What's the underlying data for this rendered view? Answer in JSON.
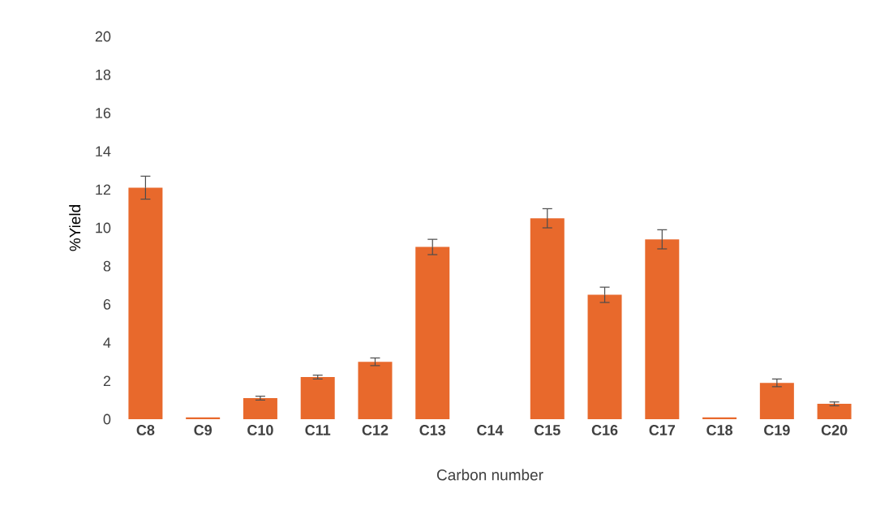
{
  "chart_data": {
    "type": "bar",
    "xlabel": "Carbon number",
    "ylabel": "%Yield",
    "categories": [
      "C8",
      "C9",
      "C10",
      "C11",
      "C12",
      "C13",
      "C14",
      "C15",
      "C16",
      "C17",
      "C18",
      "C19",
      "C20"
    ],
    "values": [
      12.1,
      0.1,
      1.1,
      2.2,
      3.0,
      9.0,
      0,
      10.5,
      6.5,
      9.4,
      0.1,
      1.9,
      0.8
    ],
    "errors": [
      0.6,
      null,
      0.1,
      0.1,
      0.2,
      0.4,
      null,
      0.5,
      0.4,
      0.5,
      null,
      0.2,
      0.1
    ],
    "color": "#e8692c",
    "ylim": [
      0,
      20
    ],
    "yticks": [
      0,
      2,
      4,
      6,
      8,
      10,
      12,
      14,
      16,
      18,
      20
    ],
    "grid": false
  }
}
